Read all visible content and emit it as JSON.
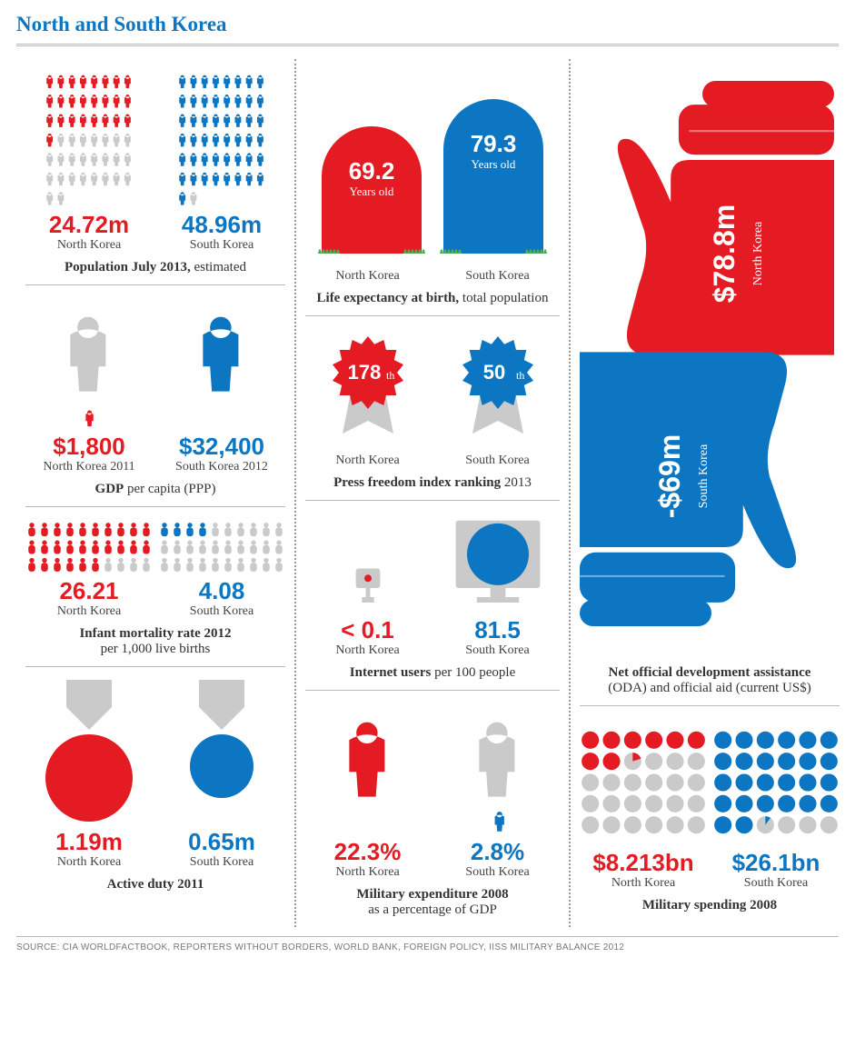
{
  "colors": {
    "north": "#e41b23",
    "south": "#0d76c2",
    "grey": "#c9cac9",
    "grass": "#4caf50",
    "text": "#333333",
    "rule": "#b8b8b8"
  },
  "headline": "North and South Korea",
  "source_line": "SOURCE: CIA WORLDFACTBOOK, REPORTERS WITHOUT BORDERS, WORLD BANK, FOREIGN POLICY, IISS MILITARY BALANCE 2012",
  "population": {
    "title_bold": "Population July 2013,",
    "title_rest": " estimated",
    "north": {
      "value": "24.72m",
      "label": "North Korea",
      "filled": 25,
      "total": 50
    },
    "south": {
      "value": "48.96m",
      "label": "South Korea",
      "filled": 49,
      "total": 50
    }
  },
  "gdp": {
    "title_bold": "GDP",
    "title_rest": " per capita (PPP)",
    "north": {
      "value": "$1,800",
      "label": "North Korea 2011",
      "ratio": 0.06
    },
    "south": {
      "value": "$32,400",
      "label": "South Korea 2012",
      "ratio": 1.0
    }
  },
  "infant": {
    "title_bold": "Infant mortality rate 2012",
    "title_rest": "per 1,000 live births",
    "north": {
      "value": "26.21",
      "label": "North Korea",
      "filled": 26,
      "total": 30
    },
    "south": {
      "value": "4.08",
      "label": "South Korea",
      "filled": 4,
      "total": 30
    }
  },
  "active_duty": {
    "title_bold": "Active duty 2011",
    "north": {
      "value": "1.19m",
      "label": "North Korea",
      "radius": 48
    },
    "south": {
      "value": "0.65m",
      "label": "South Korea",
      "radius": 35
    }
  },
  "life_exp": {
    "title_bold": "Life expectancy at birth,",
    "title_rest": " total population",
    "north": {
      "value": "69.2",
      "unit": "Years old",
      "label": "North Korea",
      "height": 140
    },
    "south": {
      "value": "79.3",
      "unit": "Years old",
      "label": "South Korea",
      "height": 170
    }
  },
  "press": {
    "title_bold": "Press freedom index ranking",
    "title_rest": " 2013",
    "north": {
      "value": "178",
      "suffix": "th",
      "label": "North Korea"
    },
    "south": {
      "value": "50",
      "suffix": "th",
      "label": "South Korea"
    }
  },
  "internet": {
    "title_bold": "Internet users",
    "title_rest": " per 100 people",
    "north": {
      "value": "< 0.1",
      "label": "North Korea",
      "radius": 4
    },
    "south": {
      "value": "81.5",
      "label": "South Korea",
      "radius": 34
    }
  },
  "mil_pct": {
    "title_bold": "Military expenditure 2008",
    "title_rest": "as a percentage of GDP",
    "north": {
      "value": "22.3%",
      "label": "North Korea",
      "ratio": 1.0
    },
    "south": {
      "value": "2.8%",
      "label": "South Korea",
      "ratio": 0.13
    }
  },
  "oda": {
    "title_bold": "Net official development assistance",
    "title_rest": "(ODA) and official aid (current US$)",
    "north": {
      "value": "$78.8m",
      "label": "North Korea"
    },
    "south": {
      "value": "-$69m",
      "label": "South Korea"
    }
  },
  "mil_spend": {
    "title_bold": "Military spending 2008",
    "north": {
      "value": "$8.213bn",
      "label": "North Korea",
      "filled": 8.2,
      "total": 30
    },
    "south": {
      "value": "$26.1bn",
      "label": "South Korea",
      "filled": 26.1,
      "total": 30
    }
  }
}
